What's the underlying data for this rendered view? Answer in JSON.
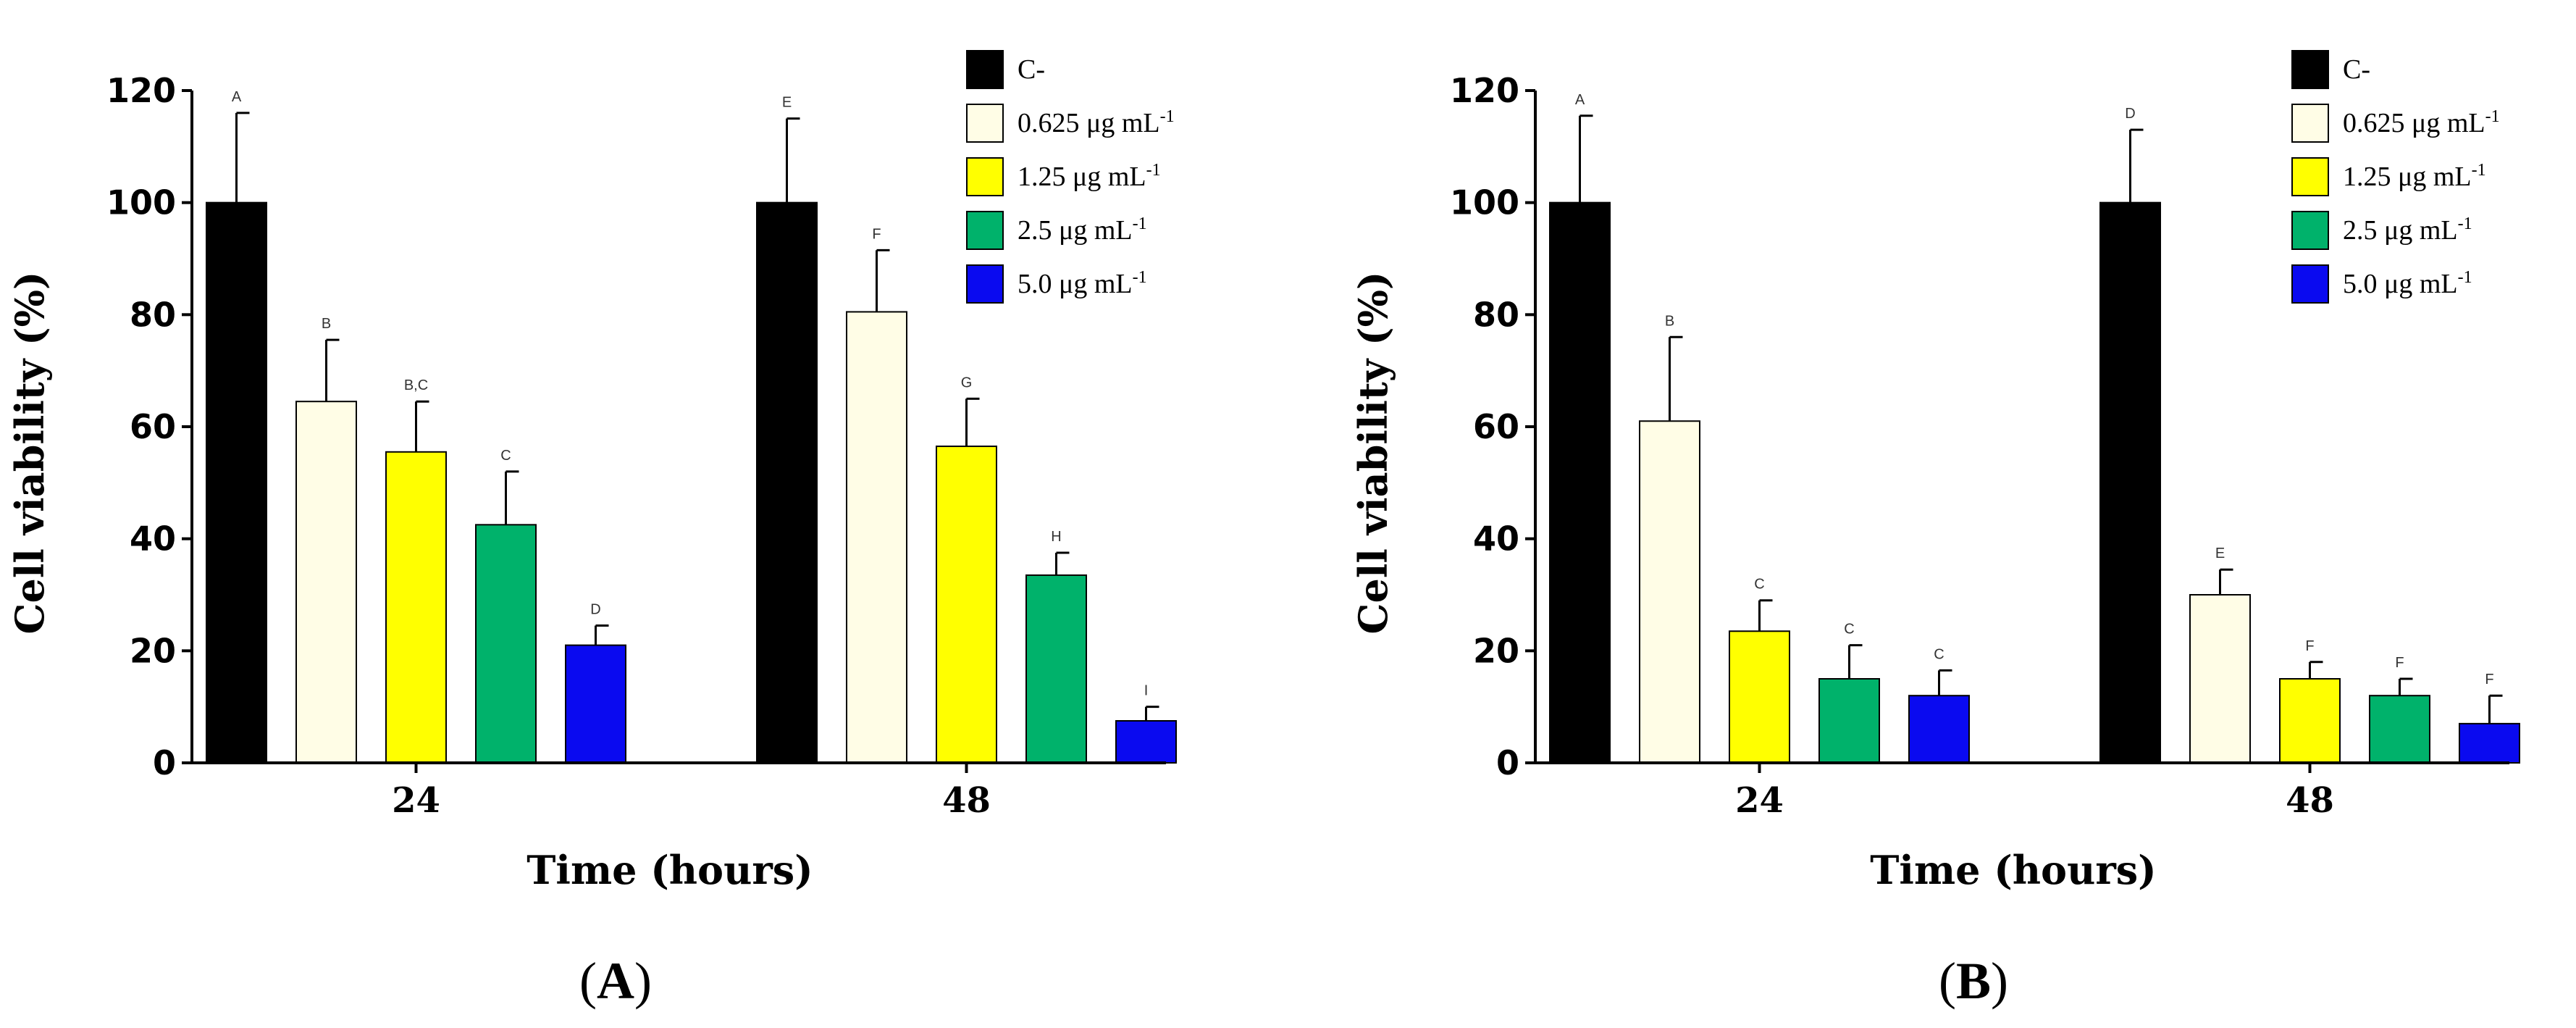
{
  "chart_data": [
    {
      "type": "bar",
      "panel_label": "A",
      "xlabel": "Time (hours)",
      "ylabel": "Cell viability (%)",
      "ylim": [
        0,
        120
      ],
      "yticks": [
        "0",
        "20",
        "40",
        "60",
        "80",
        "100",
        "120"
      ],
      "categories": [
        "24",
        "48"
      ],
      "series": [
        {
          "name": "C-",
          "values": [
            100,
            100
          ],
          "errors": [
            16,
            15
          ],
          "letters": [
            "A",
            "E"
          ]
        },
        {
          "name": "0.625 μg mL",
          "values": [
            64.5,
            80.5
          ],
          "errors": [
            11,
            11
          ],
          "letters": [
            "B",
            "F"
          ]
        },
        {
          "name": "1.25 μg mL",
          "values": [
            55.5,
            56.5
          ],
          "errors": [
            9,
            8.5
          ],
          "letters": [
            "B,C",
            "G"
          ]
        },
        {
          "name": "2.5 μg mL",
          "values": [
            42.5,
            33.5
          ],
          "errors": [
            9.5,
            4
          ],
          "letters": [
            "C",
            "H"
          ]
        },
        {
          "name": "5.0 μg mL",
          "values": [
            21,
            7.5
          ],
          "errors": [
            3.5,
            2.5
          ],
          "letters": [
            "D",
            "I"
          ]
        }
      ]
    },
    {
      "type": "bar",
      "panel_label": "B",
      "xlabel": "Time (hours)",
      "ylabel": "Cell viability (%)",
      "ylim": [
        0,
        120
      ],
      "yticks": [
        "0",
        "20",
        "40",
        "60",
        "80",
        "100",
        "120"
      ],
      "categories": [
        "24",
        "48"
      ],
      "series": [
        {
          "name": "C-",
          "values": [
            100,
            100
          ],
          "errors": [
            15.5,
            13
          ],
          "letters": [
            "A",
            "D"
          ]
        },
        {
          "name": "0.625 μg mL",
          "values": [
            61,
            30
          ],
          "errors": [
            15,
            4.5
          ],
          "letters": [
            "B",
            "E"
          ]
        },
        {
          "name": "1.25 μg mL",
          "values": [
            23.5,
            15
          ],
          "errors": [
            5.5,
            3
          ],
          "letters": [
            "C",
            "F"
          ]
        },
        {
          "name": "2.5 μg mL",
          "values": [
            15,
            12
          ],
          "errors": [
            6,
            3
          ],
          "letters": [
            "C",
            "F"
          ]
        },
        {
          "name": "5.0 μg mL",
          "values": [
            12,
            7
          ],
          "errors": [
            4.5,
            5
          ],
          "letters": [
            "C",
            "F"
          ]
        }
      ]
    }
  ],
  "legend": {
    "superscript": "-1",
    "items": [
      {
        "label": "C-",
        "color": "#000000",
        "has_unit": false
      },
      {
        "label": "0.625 μg mL",
        "color": "#FFFDE6",
        "has_unit": true
      },
      {
        "label": "1.25 μg mL",
        "color": "#FFFF00",
        "has_unit": true
      },
      {
        "label": "2.5 μg mL",
        "color": "#00B26B",
        "has_unit": true
      },
      {
        "label": "5.0 μg mL",
        "color": "#0A0AF0",
        "has_unit": true
      }
    ]
  }
}
